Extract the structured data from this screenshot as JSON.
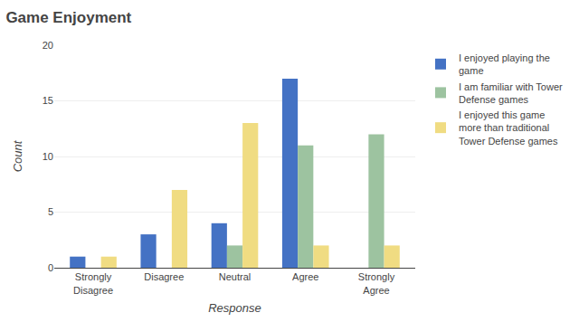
{
  "chart_data": {
    "type": "bar",
    "title": "Game Enjoyment",
    "x_label": "Response",
    "y_label": "Count",
    "categories": [
      "Strongly\nDisagree",
      "Disagree",
      "Neutral",
      "Agree",
      "Strongly\nAgree"
    ],
    "series": [
      {
        "name": "I enjoyed playing the\ngame",
        "color": "#4472C4",
        "values": [
          1,
          3,
          4,
          17,
          0
        ]
      },
      {
        "name": "I am familiar with Tower\nDefense games",
        "color": "#9DC3A0",
        "values": [
          0,
          0,
          2,
          11,
          12
        ]
      },
      {
        "name": "I enjoyed this game\nmore than traditional\nTower Defense games",
        "color": "#F0DC82",
        "values": [
          1,
          7,
          13,
          2,
          2
        ]
      }
    ],
    "ylim": [
      0,
      20
    ],
    "yticks": [
      0,
      5,
      10,
      15,
      20
    ],
    "grid": true,
    "legend": "right"
  }
}
